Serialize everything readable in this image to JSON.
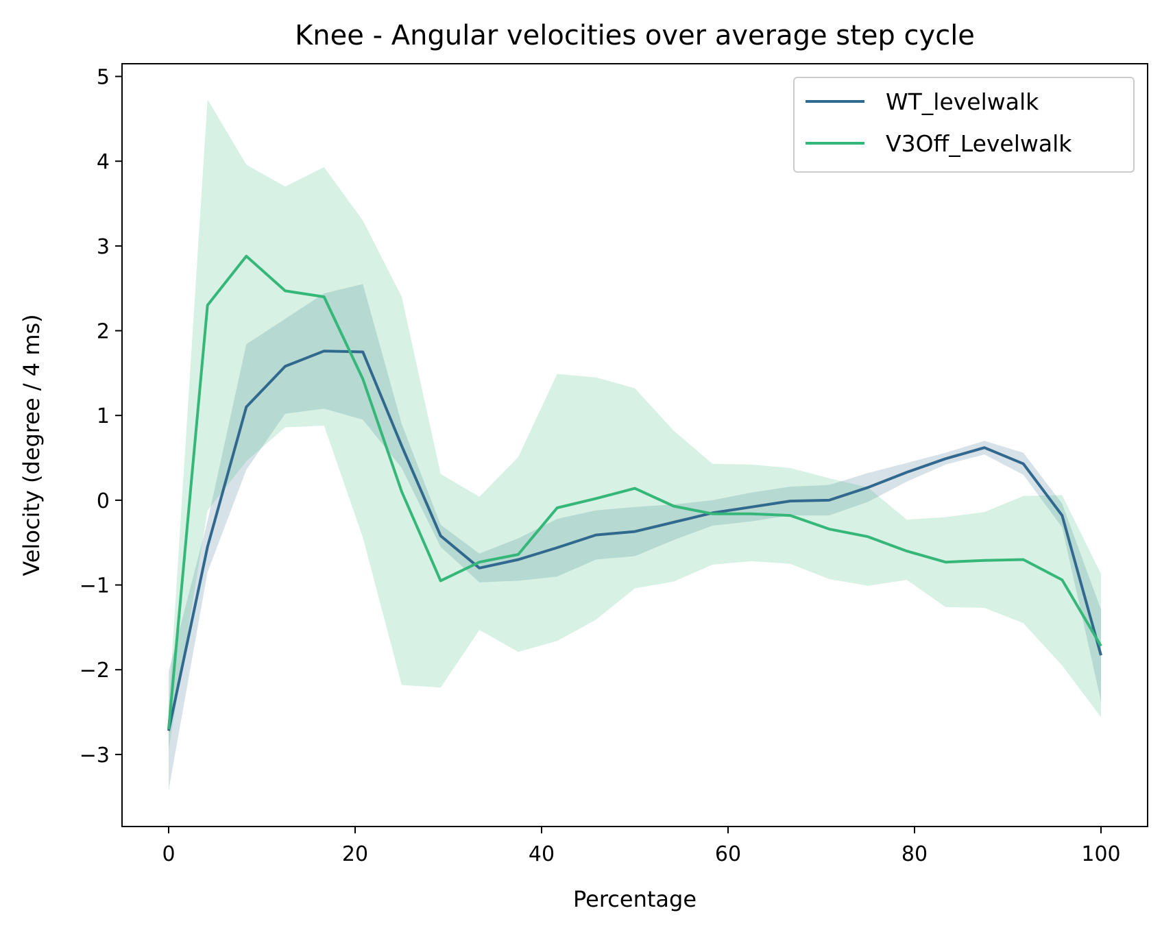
{
  "chart_data": {
    "type": "line",
    "title": "Knee - Angular velocities over average step cycle",
    "xlabel": "Percentage",
    "ylabel": "Velocity (degree / 4 ms)",
    "xlim": [
      -5,
      105
    ],
    "ylim": [
      -3.85,
      5.15
    ],
    "xticks": [
      0,
      20,
      40,
      60,
      80,
      100
    ],
    "xtick_labels": [
      "0",
      "20",
      "40",
      "60",
      "80",
      "100"
    ],
    "yticks": [
      -3,
      -2,
      -1,
      0,
      1,
      2,
      3,
      4,
      5
    ],
    "ytick_labels": [
      "−3",
      "−2",
      "−1",
      "0",
      "1",
      "2",
      "3",
      "4",
      "5"
    ],
    "grid": false,
    "legend_position": "top-right",
    "x": [
      0,
      4.17,
      8.33,
      12.5,
      16.67,
      20.83,
      25,
      29.17,
      33.33,
      37.5,
      41.67,
      45.83,
      50,
      54.17,
      58.33,
      62.5,
      66.67,
      70.83,
      75,
      79.17,
      83.33,
      87.5,
      91.67,
      95.83,
      100
    ],
    "series": [
      {
        "name": "WT_levelwalk",
        "color": "#31688e",
        "band_color": "#31688e",
        "band_opacity": 0.2,
        "values": [
          -2.72,
          -0.55,
          1.1,
          1.58,
          1.76,
          1.75,
          0.64,
          -0.42,
          -0.8,
          -0.7,
          -0.56,
          -0.41,
          -0.37,
          -0.26,
          -0.15,
          -0.08,
          -0.01,
          0.0,
          0.15,
          0.33,
          0.49,
          0.62,
          0.43,
          -0.18,
          -1.83
        ],
        "lower": [
          -3.42,
          -0.85,
          0.36,
          1.02,
          1.08,
          0.95,
          0.38,
          -0.55,
          -0.97,
          -0.95,
          -0.9,
          -0.7,
          -0.66,
          -0.47,
          -0.3,
          -0.25,
          -0.18,
          -0.18,
          -0.02,
          0.22,
          0.42,
          0.54,
          0.3,
          -0.32,
          -2.37
        ],
        "upper": [
          -2.02,
          -0.25,
          1.84,
          2.14,
          2.44,
          2.55,
          0.9,
          -0.29,
          -0.63,
          -0.45,
          -0.22,
          -0.12,
          -0.08,
          -0.05,
          0.0,
          0.09,
          0.16,
          0.18,
          0.32,
          0.44,
          0.56,
          0.7,
          0.56,
          -0.04,
          -1.29
        ]
      },
      {
        "name": "V3Off_Levelwalk",
        "color": "#35b779",
        "band_color": "#35b779",
        "band_opacity": 0.2,
        "values": [
          -2.7,
          2.3,
          2.88,
          2.47,
          2.4,
          1.43,
          0.1,
          -0.95,
          -0.73,
          -0.64,
          -0.09,
          0.02,
          0.14,
          -0.07,
          -0.16,
          -0.16,
          -0.18,
          -0.34,
          -0.43,
          -0.6,
          -0.73,
          -0.71,
          -0.7,
          -0.94,
          -1.72
        ],
        "lower": [
          -2.95,
          -0.12,
          0.46,
          0.86,
          0.88,
          -0.44,
          -2.18,
          -2.21,
          -1.53,
          -1.79,
          -1.66,
          -1.41,
          -1.04,
          -0.96,
          -0.76,
          -0.72,
          -0.75,
          -0.93,
          -1.01,
          -0.94,
          -1.26,
          -1.27,
          -1.45,
          -1.95,
          -2.56
        ],
        "upper": [
          -2.45,
          4.73,
          3.96,
          3.7,
          3.93,
          3.3,
          2.4,
          0.31,
          0.04,
          0.51,
          1.49,
          1.45,
          1.32,
          0.82,
          0.43,
          0.42,
          0.38,
          0.26,
          0.15,
          -0.23,
          -0.2,
          -0.14,
          0.05,
          0.06,
          -0.87
        ]
      }
    ]
  }
}
